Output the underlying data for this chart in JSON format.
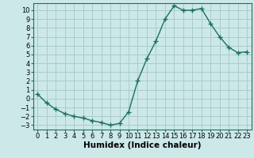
{
  "x": [
    0,
    1,
    2,
    3,
    4,
    5,
    6,
    7,
    8,
    9,
    10,
    11,
    12,
    13,
    14,
    15,
    16,
    17,
    18,
    19,
    20,
    21,
    22,
    23
  ],
  "y": [
    0.5,
    -0.5,
    -1.2,
    -1.7,
    -2.0,
    -2.2,
    -2.5,
    -2.7,
    -3.0,
    -2.8,
    -1.5,
    2.0,
    4.5,
    6.5,
    9.0,
    10.5,
    10.0,
    10.0,
    10.2,
    8.5,
    7.0,
    5.8,
    5.2,
    5.3
  ],
  "line_color": "#1a7060",
  "marker": "+",
  "marker_size": 4,
  "xlabel": "Humidex (Indice chaleur)",
  "bg_color": "#cce8e8",
  "grid_color": "#aacccc",
  "xlim": [
    -0.5,
    23.5
  ],
  "ylim": [
    -3.5,
    10.8
  ],
  "yticks": [
    -3,
    -2,
    -1,
    0,
    1,
    2,
    3,
    4,
    5,
    6,
    7,
    8,
    9,
    10
  ],
  "xticks": [
    0,
    1,
    2,
    3,
    4,
    5,
    6,
    7,
    8,
    9,
    10,
    11,
    12,
    13,
    14,
    15,
    16,
    17,
    18,
    19,
    20,
    21,
    22,
    23
  ],
  "xlabel_fontsize": 7.5,
  "tick_fontsize": 6
}
